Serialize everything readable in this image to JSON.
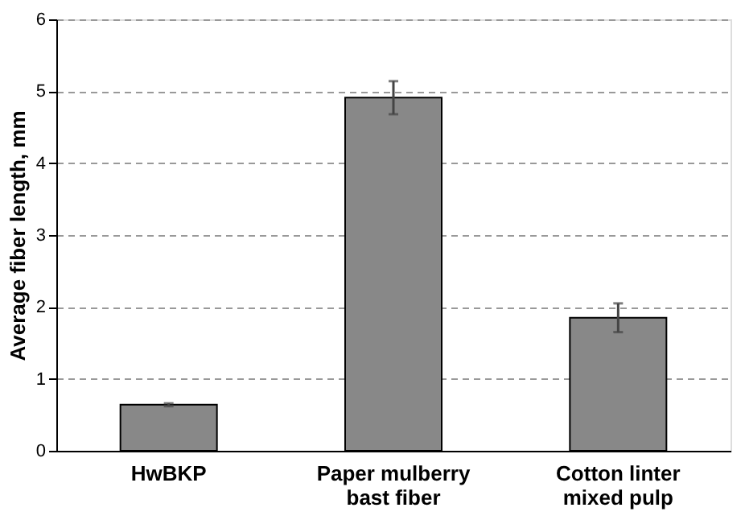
{
  "chart_data": {
    "type": "bar",
    "ylabel": "Average fiber length, mm",
    "categories": [
      "HwBKP",
      "Paper mulberry bast fiber",
      "Cotton linter mixed pulp"
    ],
    "values": [
      0.64,
      4.91,
      1.85
    ],
    "errors": [
      0.02,
      0.23,
      0.2
    ],
    "color": "#888888",
    "ylim": [
      0,
      6
    ],
    "yticks": [
      0,
      1,
      2,
      3,
      4,
      5,
      6
    ],
    "grid": "y"
  }
}
